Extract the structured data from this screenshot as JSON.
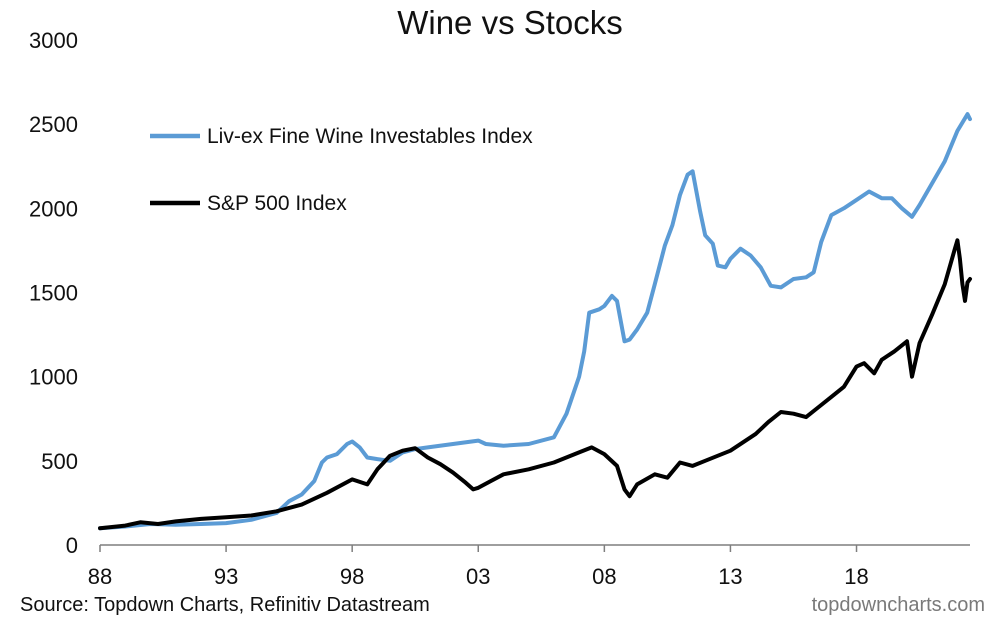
{
  "chart_data": {
    "type": "line",
    "title": "Wine vs Stocks",
    "xlabel": "",
    "ylabel": "",
    "xlim": [
      1988,
      2022.5
    ],
    "ylim": [
      0,
      3000
    ],
    "x_ticks": [
      1988,
      1993,
      1998,
      2003,
      2008,
      2013,
      2018
    ],
    "x_tick_labels": [
      "88",
      "93",
      "98",
      "03",
      "08",
      "13",
      "18"
    ],
    "y_ticks": [
      0,
      500,
      1000,
      1500,
      2000,
      2500,
      3000
    ],
    "y_tick_labels": [
      "0",
      "500",
      "1000",
      "1500",
      "2000",
      "2500",
      "3000"
    ],
    "grid": false,
    "legend_position": "top-left",
    "series": [
      {
        "name": "Liv-ex Fine Wine Investables Index",
        "color": "#5b9bd5",
        "points": [
          [
            1988.0,
            100
          ],
          [
            1989.0,
            110
          ],
          [
            1990.0,
            125
          ],
          [
            1991.0,
            120
          ],
          [
            1992.0,
            125
          ],
          [
            1993.0,
            130
          ],
          [
            1994.0,
            150
          ],
          [
            1995.0,
            190
          ],
          [
            1995.5,
            260
          ],
          [
            1996.0,
            300
          ],
          [
            1996.5,
            380
          ],
          [
            1996.8,
            490
          ],
          [
            1997.0,
            520
          ],
          [
            1997.4,
            540
          ],
          [
            1997.8,
            600
          ],
          [
            1998.0,
            615
          ],
          [
            1998.3,
            580
          ],
          [
            1998.6,
            520
          ],
          [
            1999.0,
            510
          ],
          [
            1999.5,
            500
          ],
          [
            2000.0,
            550
          ],
          [
            2000.5,
            570
          ],
          [
            2001.0,
            580
          ],
          [
            2002.0,
            600
          ],
          [
            2003.0,
            620
          ],
          [
            2003.3,
            600
          ],
          [
            2004.0,
            590
          ],
          [
            2005.0,
            600
          ],
          [
            2006.0,
            640
          ],
          [
            2006.5,
            780
          ],
          [
            2007.0,
            1000
          ],
          [
            2007.2,
            1150
          ],
          [
            2007.4,
            1380
          ],
          [
            2007.8,
            1400
          ],
          [
            2008.0,
            1420
          ],
          [
            2008.3,
            1480
          ],
          [
            2008.5,
            1450
          ],
          [
            2008.8,
            1210
          ],
          [
            2009.0,
            1220
          ],
          [
            2009.3,
            1280
          ],
          [
            2009.7,
            1380
          ],
          [
            2010.0,
            1550
          ],
          [
            2010.4,
            1780
          ],
          [
            2010.7,
            1900
          ],
          [
            2011.0,
            2080
          ],
          [
            2011.3,
            2200
          ],
          [
            2011.5,
            2220
          ],
          [
            2011.8,
            1980
          ],
          [
            2012.0,
            1840
          ],
          [
            2012.3,
            1790
          ],
          [
            2012.5,
            1660
          ],
          [
            2012.8,
            1650
          ],
          [
            2013.0,
            1700
          ],
          [
            2013.4,
            1760
          ],
          [
            2013.8,
            1720
          ],
          [
            2014.2,
            1650
          ],
          [
            2014.6,
            1540
          ],
          [
            2015.0,
            1530
          ],
          [
            2015.5,
            1580
          ],
          [
            2016.0,
            1590
          ],
          [
            2016.3,
            1620
          ],
          [
            2016.6,
            1800
          ],
          [
            2017.0,
            1960
          ],
          [
            2017.5,
            2000
          ],
          [
            2018.0,
            2050
          ],
          [
            2018.5,
            2100
          ],
          [
            2019.0,
            2060
          ],
          [
            2019.4,
            2060
          ],
          [
            2019.8,
            2000
          ],
          [
            2020.2,
            1950
          ],
          [
            2020.5,
            2020
          ],
          [
            2021.0,
            2150
          ],
          [
            2021.5,
            2280
          ],
          [
            2022.0,
            2460
          ],
          [
            2022.4,
            2560
          ],
          [
            2022.5,
            2530
          ]
        ]
      },
      {
        "name": "S&P 500 Index",
        "color": "#000000",
        "points": [
          [
            1988.0,
            100
          ],
          [
            1989.0,
            115
          ],
          [
            1989.6,
            135
          ],
          [
            1990.3,
            125
          ],
          [
            1991.0,
            140
          ],
          [
            1992.0,
            155
          ],
          [
            1993.0,
            165
          ],
          [
            1994.0,
            175
          ],
          [
            1995.0,
            200
          ],
          [
            1996.0,
            240
          ],
          [
            1997.0,
            310
          ],
          [
            1998.0,
            390
          ],
          [
            1998.6,
            360
          ],
          [
            1999.0,
            450
          ],
          [
            1999.5,
            530
          ],
          [
            2000.0,
            560
          ],
          [
            2000.5,
            575
          ],
          [
            2001.0,
            520
          ],
          [
            2001.5,
            480
          ],
          [
            2002.0,
            430
          ],
          [
            2002.5,
            370
          ],
          [
            2002.8,
            330
          ],
          [
            2003.0,
            340
          ],
          [
            2003.5,
            380
          ],
          [
            2004.0,
            420
          ],
          [
            2005.0,
            450
          ],
          [
            2006.0,
            490
          ],
          [
            2007.0,
            550
          ],
          [
            2007.5,
            580
          ],
          [
            2008.0,
            540
          ],
          [
            2008.5,
            470
          ],
          [
            2008.8,
            330
          ],
          [
            2009.0,
            290
          ],
          [
            2009.3,
            360
          ],
          [
            2010.0,
            420
          ],
          [
            2010.5,
            400
          ],
          [
            2011.0,
            490
          ],
          [
            2011.5,
            470
          ],
          [
            2012.0,
            500
          ],
          [
            2013.0,
            560
          ],
          [
            2014.0,
            660
          ],
          [
            2014.5,
            730
          ],
          [
            2015.0,
            790
          ],
          [
            2015.5,
            780
          ],
          [
            2016.0,
            760
          ],
          [
            2016.5,
            820
          ],
          [
            2017.0,
            880
          ],
          [
            2017.5,
            940
          ],
          [
            2018.0,
            1060
          ],
          [
            2018.3,
            1080
          ],
          [
            2018.7,
            1020
          ],
          [
            2019.0,
            1100
          ],
          [
            2019.5,
            1150
          ],
          [
            2020.0,
            1210
          ],
          [
            2020.2,
            1000
          ],
          [
            2020.5,
            1200
          ],
          [
            2021.0,
            1370
          ],
          [
            2021.5,
            1550
          ],
          [
            2021.9,
            1760
          ],
          [
            2022.0,
            1810
          ],
          [
            2022.1,
            1700
          ],
          [
            2022.2,
            1550
          ],
          [
            2022.3,
            1450
          ],
          [
            2022.4,
            1560
          ],
          [
            2022.5,
            1580
          ]
        ]
      }
    ]
  },
  "footer": {
    "source": "Source: Topdown Charts, Refinitiv Datastream",
    "brand": "topdowncharts.com"
  }
}
